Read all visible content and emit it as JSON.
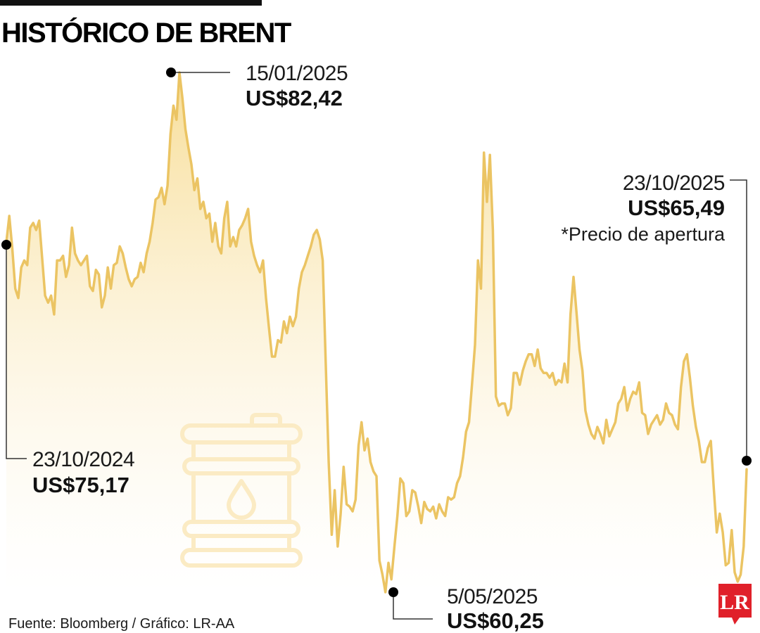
{
  "title": "HISTÓRICO DE BRENT",
  "source": "Fuente: Bloomberg / Gráfico: LR-AA",
  "logo": "LR",
  "colors": {
    "line": "#EBC463",
    "area_top": "#F7DC93",
    "area_bottom": "#FFFFFF",
    "barrel_icon": "#FBEBC4",
    "logo_bg": "#E0202A",
    "marker": "#000000"
  },
  "icons": [
    "oil-barrel-icon",
    "oil-drop-icon"
  ],
  "annotations": [
    {
      "id": "start",
      "date": "23/10/2024",
      "value": "US$75,17",
      "note": ""
    },
    {
      "id": "peak",
      "date": "15/01/2025",
      "value": "US$82,42",
      "note": ""
    },
    {
      "id": "low",
      "date": "5/05/2025",
      "value": "US$60,25",
      "note": ""
    },
    {
      "id": "end",
      "date": "23/10/2025",
      "value": "US$65,49",
      "note": "*Precio de apertura"
    }
  ],
  "chart_data": {
    "type": "area",
    "title": "HISTÓRICO DE BRENT",
    "xlabel": "",
    "ylabel": "",
    "unit": "US$",
    "x_start": "2024-10-23",
    "x_end": "2025-10-23",
    "ylim": [
      59.5,
      83.0
    ],
    "grid": false,
    "legend": "none",
    "series": [
      {
        "values": [
          75.17,
          76.3,
          74.9,
          73.2,
          72.8,
          74.1,
          74.4,
          74.2,
          75.8,
          76.0,
          75.7,
          76.1,
          74.5,
          72.9,
          72.6,
          72.9,
          72.1,
          74.4,
          74.4,
          74.6,
          73.7,
          74.2,
          75.8,
          74.7,
          74.4,
          74.2,
          74.4,
          74.6,
          73.3,
          73.1,
          74.0,
          73.8,
          72.4,
          72.9,
          74.1,
          73.2,
          74.2,
          74.3,
          75.0,
          74.7,
          74.1,
          73.6,
          73.3,
          73.6,
          73.7,
          74.3,
          73.9,
          74.7,
          75.2,
          76.0,
          77.0,
          77.1,
          77.5,
          76.8,
          77.6,
          79.8,
          81.0,
          80.4,
          82.42,
          81.3,
          80.0,
          79.2,
          78.5,
          77.4,
          77.9,
          76.6,
          76.9,
          76.2,
          76.4,
          75.2,
          76.0,
          75.0,
          74.7,
          76.2,
          76.9,
          75.0,
          75.4,
          75.0,
          75.7,
          75.9,
          76.2,
          76.6,
          75.2,
          74.6,
          74.2,
          73.9,
          74.4,
          72.8,
          71.5,
          70.3,
          70.3,
          71.0,
          70.9,
          71.8,
          71.3,
          72.0,
          71.6,
          72.0,
          73.2,
          73.9,
          74.2,
          74.6,
          75.0,
          75.5,
          75.7,
          75.3,
          74.4,
          70.0,
          65.8,
          62.7,
          64.6,
          62.2,
          63.6,
          65.6,
          64.0,
          63.9,
          63.7,
          64.2,
          66.5,
          67.5,
          66.3,
          66.8,
          65.8,
          65.4,
          65.2,
          61.6,
          61.0,
          60.25,
          61.5,
          60.8,
          62.2,
          63.5,
          65.1,
          64.9,
          63.5,
          63.7,
          64.6,
          64.5,
          63.9,
          63.2,
          64.1,
          63.8,
          63.7,
          63.9,
          63.4,
          64.0,
          63.7,
          63.5,
          64.3,
          64.2,
          64.3,
          64.9,
          65.2,
          66.0,
          67.1,
          67.5,
          69.1,
          70.8,
          74.4,
          73.2,
          79.0,
          76.9,
          78.9,
          75.7,
          68.6,
          68.2,
          68.3,
          68.3,
          67.8,
          68.1,
          69.6,
          69.6,
          69.1,
          69.7,
          70.1,
          70.4,
          70.4,
          69.9,
          70.6,
          69.8,
          69.6,
          69.6,
          69.4,
          69.6,
          69.1,
          69.3,
          69.2,
          70.0,
          69.2,
          72.1,
          73.7,
          72.2,
          70.6,
          69.7,
          68.0,
          67.4,
          67.0,
          66.8,
          67.3,
          67.0,
          66.6,
          67.6,
          66.9,
          67.2,
          67.5,
          68.3,
          68.5,
          69.0,
          68.0,
          68.5,
          68.8,
          68.7,
          69.2,
          67.9,
          67.8,
          67.0,
          67.4,
          67.6,
          67.8,
          67.4,
          67.6,
          68.3,
          67.9,
          67.8,
          67.4,
          67.2,
          69.0,
          70.1,
          70.4,
          69.4,
          68.2,
          67.3,
          66.7,
          65.8,
          65.8,
          66.4,
          66.7,
          64.7,
          62.8,
          63.6,
          62.8,
          61.4,
          61.5,
          62.9,
          61.1,
          60.7,
          61.0,
          62.2,
          65.49
        ]
      }
    ]
  }
}
